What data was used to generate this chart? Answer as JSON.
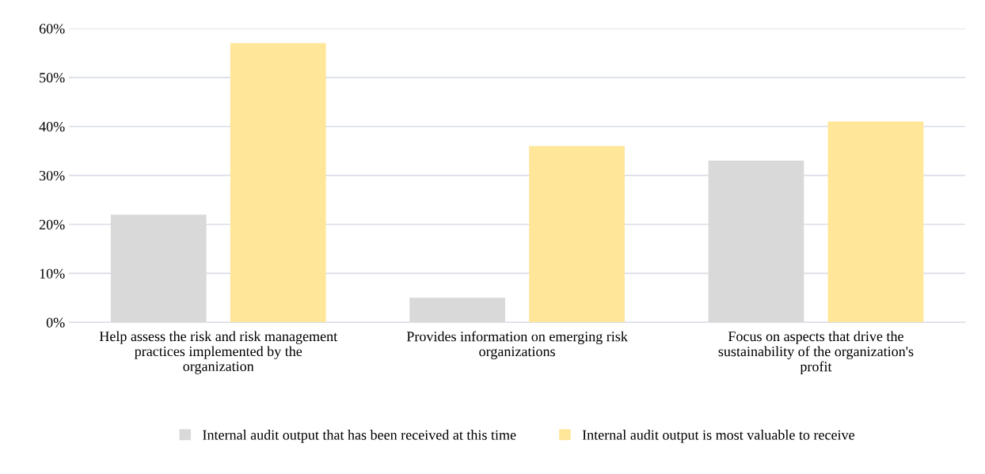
{
  "chart_data": {
    "type": "bar",
    "categories": [
      "Help assess the risk and risk management practices implemented by the organization",
      "Provides information on emerging risk organizations",
      "Focus on aspects that drive the sustainability of the organization's profit"
    ],
    "series": [
      {
        "name": "Internal audit output that has been received at this time",
        "color": "#d9d9d9",
        "values": [
          22,
          5,
          33
        ]
      },
      {
        "name": "Internal audit output is most valuable to receive",
        "color": "#ffe699",
        "values": [
          57,
          36,
          41
        ]
      }
    ],
    "ylim": [
      0,
      60
    ],
    "yticks": [
      {
        "value": 0,
        "label": "0%"
      },
      {
        "value": 10,
        "label": "10%"
      },
      {
        "value": 20,
        "label": "20%"
      },
      {
        "value": 30,
        "label": "30%"
      },
      {
        "value": 40,
        "label": "40%"
      },
      {
        "value": 50,
        "label": "50%"
      },
      {
        "value": 60,
        "label": "60%"
      }
    ],
    "grid": "y",
    "legend": "bottom"
  }
}
